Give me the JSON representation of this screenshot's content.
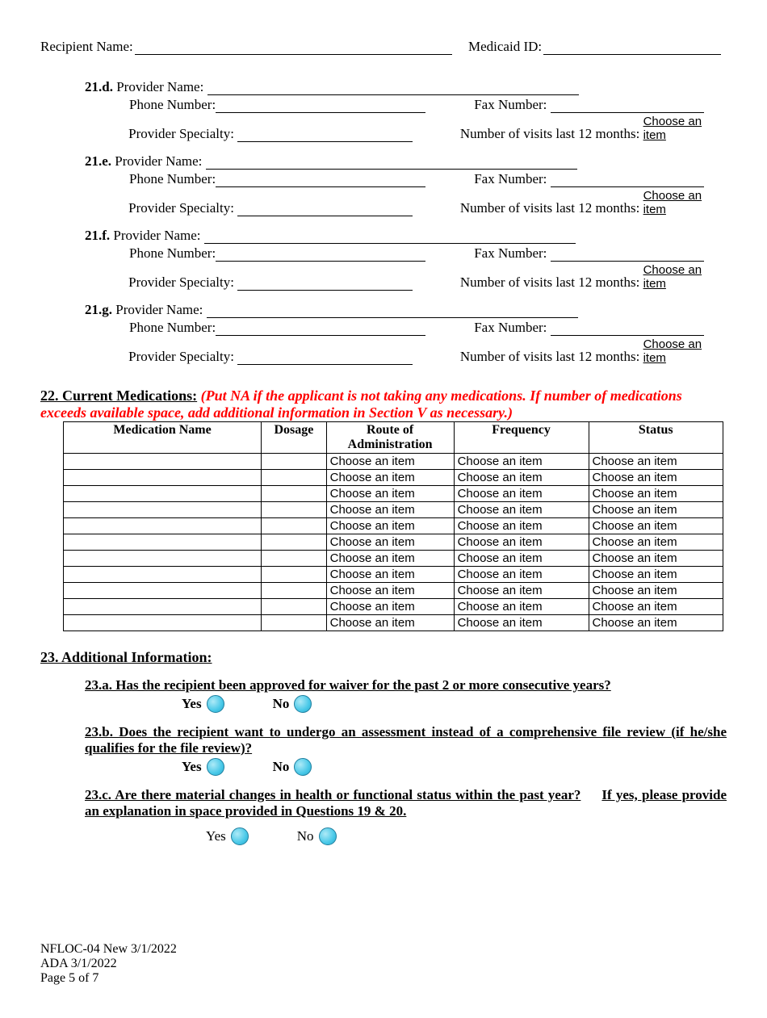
{
  "header": {
    "recipient_label": "Recipient Name:",
    "medicaid_label": "Medicaid ID:"
  },
  "providers": [
    {
      "prefix": "21.d.",
      "name_label": " Provider Name: ",
      "phone_label": "Phone Number:",
      "fax_label": "Fax Number: ",
      "spec_label": "Provider Specialty: ",
      "visits_label": "Number of visits last 12 months: ",
      "choose": "Choose an item"
    },
    {
      "prefix": "21.e.",
      "name_label": " Provider Name: ",
      "phone_label": "Phone Number:",
      "fax_label": "Fax Number: ",
      "spec_label": "Provider Specialty: ",
      "visits_label": "Number of visits last 12 months: ",
      "choose": "Choose an item"
    },
    {
      "prefix": "21.f.",
      "name_label": " Provider Name: ",
      "phone_label": "Phone Number:",
      "fax_label": "Fax Number: ",
      "spec_label": "Provider Specialty: ",
      "visits_label": "Number of visits last 12 months: ",
      "choose": "Choose an item"
    },
    {
      "prefix": "21.g.",
      "name_label": " Provider Name: ",
      "phone_label": "Phone Number:",
      "fax_label": "Fax Number: ",
      "spec_label": "Provider Specialty: ",
      "visits_label": "Number of visits last 12 months: ",
      "choose": "Choose an item"
    }
  ],
  "section22": {
    "heading": "22. Current Medications:",
    "note": " (Put NA if the applicant is not taking any medications. If number of medications exceeds available space, add additional information in Section V as necessary.)",
    "cols": [
      "Medication Name",
      "Dosage",
      "Route of Administration",
      "Frequency",
      "Status"
    ],
    "cell": "Choose an item",
    "rowCount": 11
  },
  "section23": {
    "heading": "23. Additional Information:",
    "a": "23.a. Has the recipient been approved for waiver for the past 2 or more consecutive years?",
    "b": "23.b. Does the recipient want to undergo an assessment instead of a comprehensive file review (if he/she qualifies for the file review)?",
    "c_part1": "23.c. Are there material changes in health or functional status within the past  year?",
    "c_part2": "If yes, please provide an explanation",
    "c_part3": " in space provided in Questions 19 & 20.",
    "yes": "Yes",
    "no": "No"
  },
  "footer": {
    "l1": "NFLOC-04 New 3/1/2022",
    "l2": " ADA 3/1/2022",
    "l3": "Page 5 of 7"
  },
  "colors": {
    "red": "#ff0000",
    "radio_fill": "#48c8e8"
  }
}
